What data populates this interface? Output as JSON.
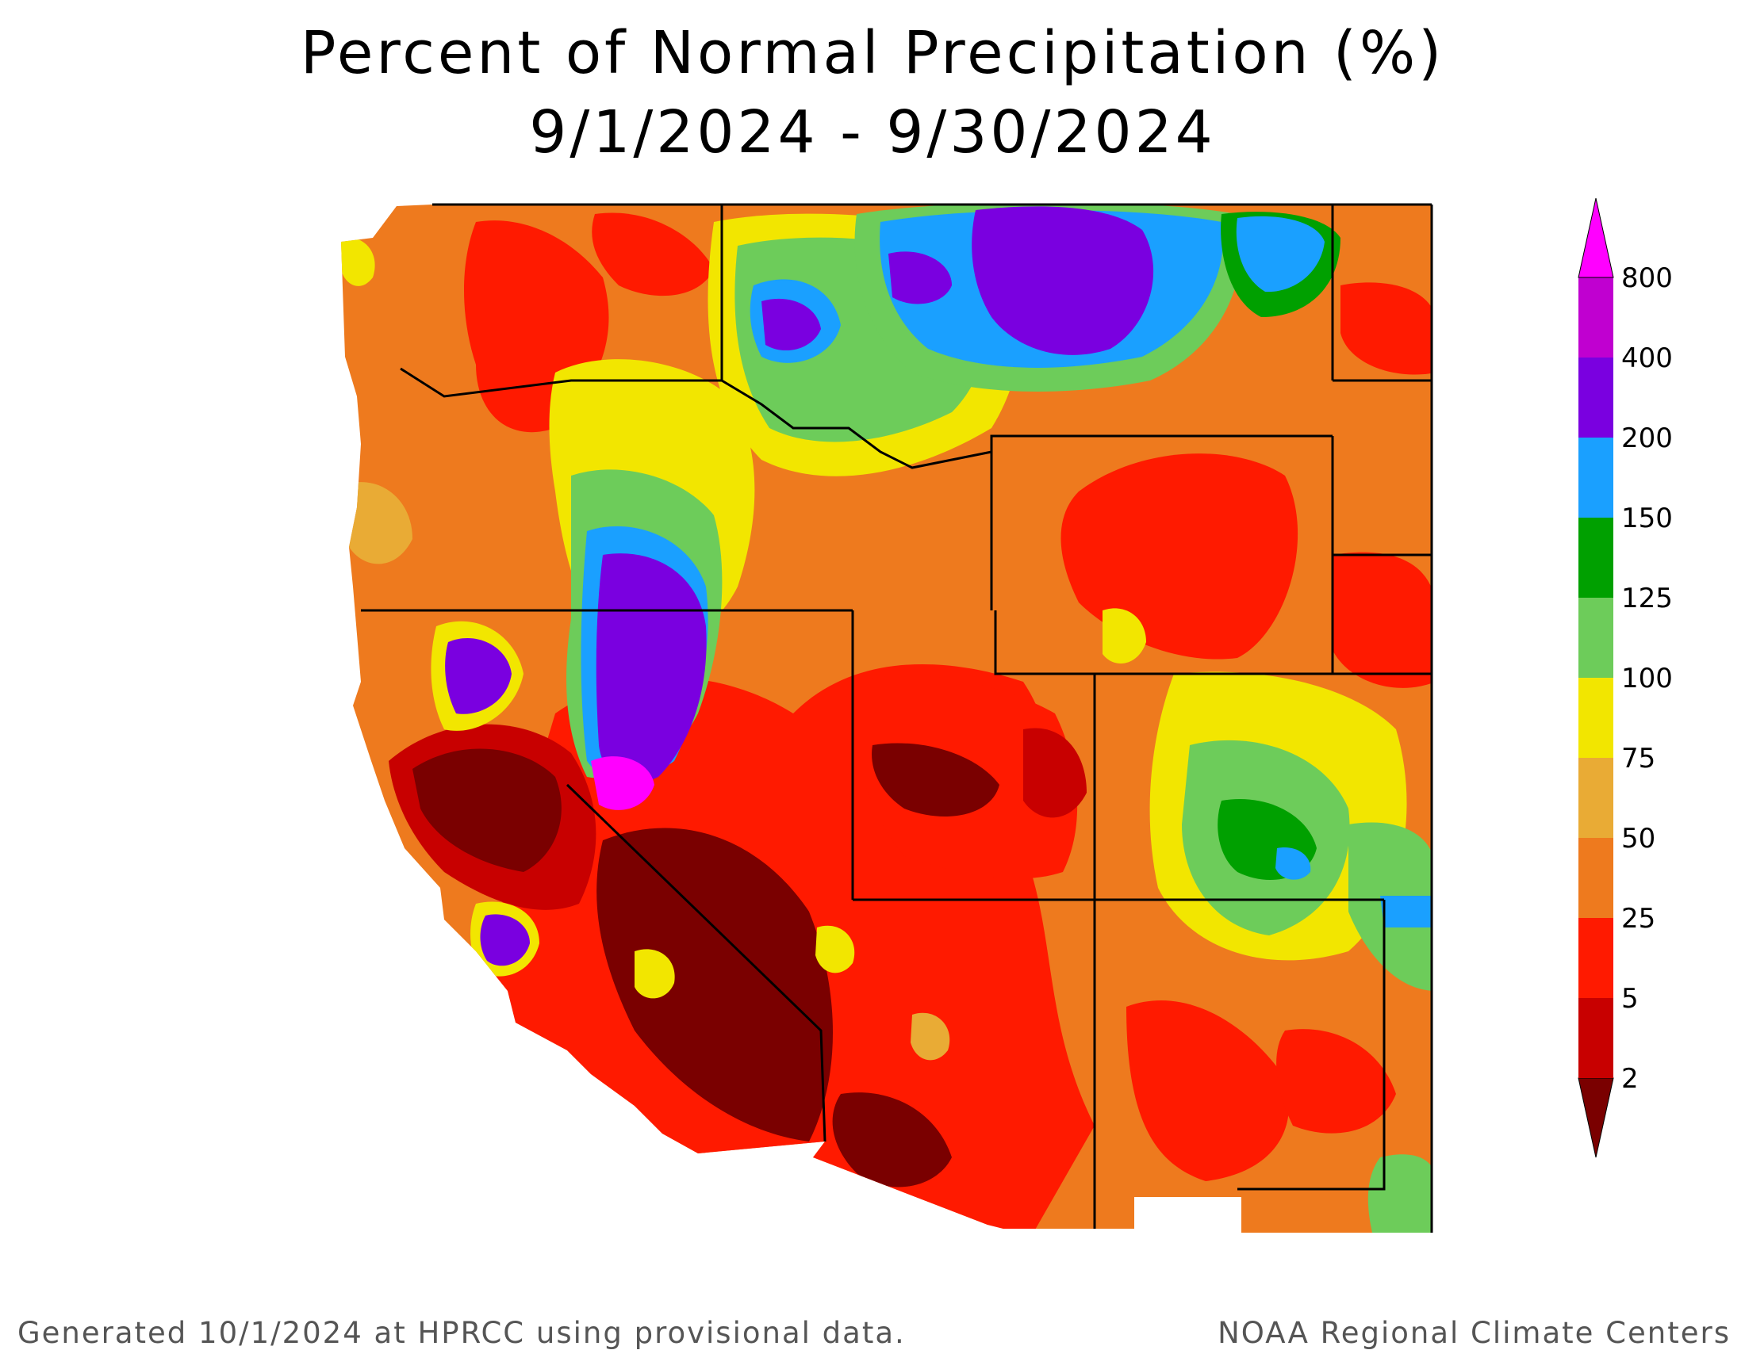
{
  "title": {
    "line1": "Percent of Normal Precipitation (%)",
    "line2": "9/1/2024 - 9/30/2024"
  },
  "colorbar": {
    "labels": [
      "2",
      "5",
      "25",
      "50",
      "75",
      "100",
      "125",
      "150",
      "200",
      "400",
      "800"
    ],
    "colors": [
      "#7a0000",
      "#c80000",
      "#ff1a00",
      "#ee7a1e",
      "#e9ab35",
      "#f2e600",
      "#6dcc5a",
      "#00a000",
      "#1aa0ff",
      "#7a00e0",
      "#c000d0",
      "#ff00ff"
    ]
  },
  "map_colors": {
    "white_land": "#ffffff",
    "boundary": "#000000"
  },
  "footer": {
    "left": "Generated 10/1/2024 at HPRCC using provisional data.",
    "right": "NOAA Regional Climate Centers"
  }
}
